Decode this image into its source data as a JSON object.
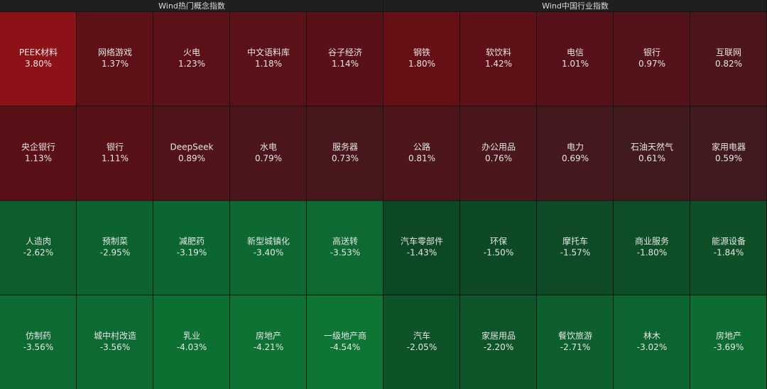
{
  "chart_data": [
    {
      "type": "heatmap",
      "title": "Wind热门概念指数",
      "categories": [
        "PEEK材料",
        "网络游戏",
        "火电",
        "中文语料库",
        "谷子经济",
        "央企银行",
        "银行",
        "DeepSeek",
        "水电",
        "服务器",
        "人造肉",
        "预制菜",
        "减肥药",
        "新型城镇化",
        "高送转",
        "仿制药",
        "城中村改造",
        "乳业",
        "房地产",
        "一级地产商"
      ],
      "values": [
        3.8,
        1.37,
        1.23,
        1.18,
        1.14,
        1.13,
        1.11,
        0.89,
        0.79,
        0.73,
        -2.62,
        -2.95,
        -3.19,
        -3.4,
        -3.53,
        -3.56,
        -3.56,
        -4.03,
        -4.21,
        -4.54
      ],
      "value_labels": [
        "3.80%",
        "1.37%",
        "1.23%",
        "1.18%",
        "1.14%",
        "1.13%",
        "1.11%",
        "0.89%",
        "0.79%",
        "0.73%",
        "-2.62%",
        "-2.95%",
        "-3.19%",
        "-3.40%",
        "-3.53%",
        "-3.56%",
        "-3.56%",
        "-4.03%",
        "-4.21%",
        "-4.54%"
      ]
    },
    {
      "type": "heatmap",
      "title": "Wind中国行业指数",
      "categories": [
        "钢铁",
        "软饮料",
        "电信",
        "银行",
        "互联网",
        "公路",
        "办公用品",
        "电力",
        "石油天然气",
        "家用电器",
        "汽车零部件",
        "环保",
        "摩托车",
        "商业服务",
        "能源设备",
        "汽车",
        "家居用品",
        "餐饮旅游",
        "林木",
        "房地产"
      ],
      "values": [
        1.8,
        1.42,
        1.01,
        0.97,
        0.82,
        0.81,
        0.76,
        0.69,
        0.61,
        0.59,
        -1.43,
        -1.5,
        -1.57,
        -1.8,
        -1.84,
        -2.05,
        -2.2,
        -2.71,
        -3.02,
        -3.69
      ],
      "value_labels": [
        "1.80%",
        "1.42%",
        "1.01%",
        "0.97%",
        "0.82%",
        "0.81%",
        "0.76%",
        "0.69%",
        "0.61%",
        "0.59%",
        "-1.43%",
        "-1.50%",
        "-1.57%",
        "-1.80%",
        "-1.84%",
        "-2.05%",
        "-2.20%",
        "-2.71%",
        "-3.02%",
        "-3.69%"
      ]
    }
  ]
}
